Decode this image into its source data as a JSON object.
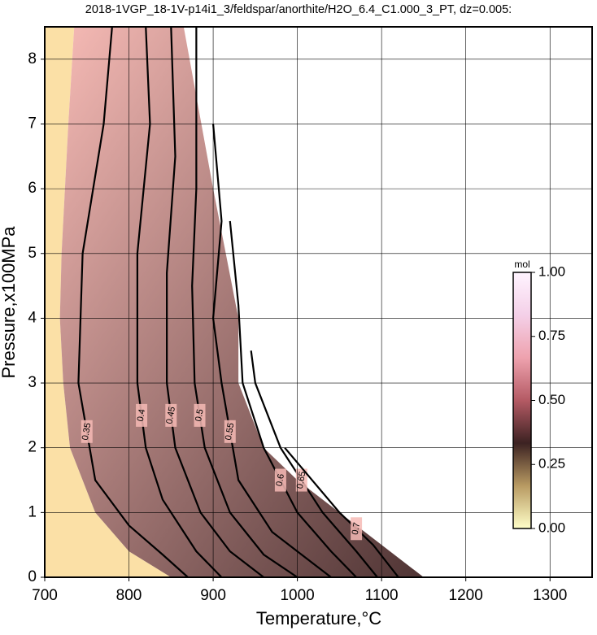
{
  "chart_data": {
    "type": "contour",
    "title": "2018-1VGP_18-1V-p14i1_3/feldspar/anorthite/H2O_6.4_C1.000_3_PT, dz=0.005:",
    "xlabel": "Temperature,°C",
    "ylabel": "Pressure,x100MPa",
    "xlim": [
      700,
      1350
    ],
    "ylim": [
      0,
      8.5
    ],
    "xticks": [
      700,
      800,
      900,
      1000,
      1100,
      1200,
      1300
    ],
    "yticks": [
      0,
      1,
      2,
      3,
      4,
      5,
      6,
      7,
      8
    ],
    "grid": true,
    "solid_region": {
      "color": "#fbe0a6",
      "x": [
        700,
        735,
        728,
        720,
        718,
        722,
        730,
        760,
        800,
        850,
        700
      ],
      "y": [
        8.5,
        8.5,
        7,
        5,
        4,
        3,
        2,
        1,
        0.4,
        0,
        0
      ]
    },
    "melt_region": {
      "colors": [
        "#f6bab5",
        "#4f3434"
      ],
      "x": [
        735,
        865,
        900,
        930,
        930,
        960,
        1000,
        1050,
        1100,
        1150,
        850,
        800,
        760,
        730,
        722,
        718,
        720,
        728
      ],
      "y": [
        8.5,
        8.5,
        6,
        4,
        3,
        2,
        1.5,
        1,
        0.5,
        0,
        0,
        0.4,
        1,
        2,
        3,
        4,
        5,
        7
      ]
    },
    "contour_color": "#000000",
    "contours": [
      {
        "level": 0.35,
        "x": [
          780,
          770,
          745,
          740,
          760,
          800,
          840,
          870
        ],
        "y": [
          8.5,
          7,
          5,
          3,
          1.5,
          0.8,
          0.35,
          0
        ]
      },
      {
        "level": 0.4,
        "x": [
          820,
          825,
          810,
          810,
          820,
          840,
          880,
          910
        ],
        "y": [
          8.5,
          7,
          5,
          3,
          2,
          1.2,
          0.4,
          0
        ]
      },
      {
        "level": 0.45,
        "x": [
          850,
          855,
          845,
          845,
          855,
          885,
          920,
          960
        ],
        "y": [
          8.5,
          6.5,
          4.7,
          3,
          2,
          1,
          0.4,
          0
        ]
      },
      {
        "level": 0.5,
        "x": [
          880,
          880,
          875,
          878,
          890,
          920,
          960,
          1000
        ],
        "y": [
          8.5,
          6,
          4.5,
          3,
          2,
          1,
          0.35,
          0
        ]
      },
      {
        "level": 0.55,
        "x": [
          900,
          910,
          900,
          910,
          930,
          970,
          1010,
          1040
        ],
        "y": [
          7,
          5.5,
          4,
          3,
          1.5,
          0.7,
          0.3,
          0
        ]
      },
      {
        "level": 0.6,
        "x": [
          920,
          930,
          935,
          960,
          1000,
          1040,
          1070
        ],
        "y": [
          5.5,
          4.2,
          3,
          2,
          1,
          0.4,
          0
        ]
      },
      {
        "level": 0.65,
        "x": [
          945,
          950,
          980,
          1030,
          1070,
          1095
        ],
        "y": [
          3.5,
          3,
          2,
          1,
          0.4,
          0
        ]
      },
      {
        "level": 0.7,
        "x": [
          985,
          1050,
          1090,
          1120
        ],
        "y": [
          2,
          1,
          0.5,
          0
        ]
      }
    ],
    "colorbar": {
      "label": "mol",
      "lim": [
        0,
        1
      ],
      "ticks": [
        {
          "value": 0,
          "label": "0.00"
        },
        {
          "value": 0.25,
          "label": "0.25"
        },
        {
          "value": 0.5,
          "label": "0.50"
        },
        {
          "value": 0.75,
          "label": "0.75"
        },
        {
          "value": 1,
          "label": "1.00"
        }
      ],
      "colors": [
        "#ffffc8",
        "#b89a62",
        "#3c2222",
        "#b45a64",
        "#eea2ae",
        "#f4d0e8",
        "#fff4ff"
      ]
    }
  }
}
